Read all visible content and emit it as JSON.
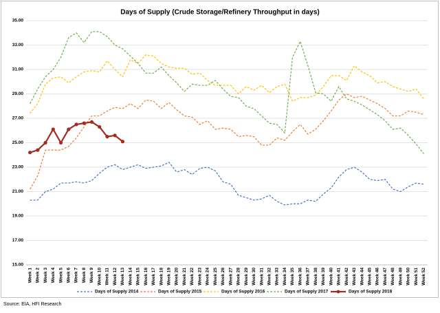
{
  "chart_data": {
    "type": "line",
    "title": "Days of Supply (Crude Storage/Refinery Throughput in days)",
    "source": "Source: EIA, HFI Research",
    "categories": [
      "Week 1",
      "Week 2",
      "Week 3",
      "Week 4",
      "Week 5",
      "Week 6",
      "Week 7",
      "Week 8",
      "Week 9",
      "Week 10",
      "Week 11",
      "Week 12",
      "Week 13",
      "Week 14",
      "Week 15",
      "Week 16",
      "Week 17",
      "Week 18",
      "Week 19",
      "Week 20",
      "Week 21",
      "Week 22",
      "Week 23",
      "Week 24",
      "Week 25",
      "Week 26",
      "Week 27",
      "Week 28",
      "Week 29",
      "Week 30",
      "Week 31",
      "Week 32",
      "Week 33",
      "Week 34",
      "Week 35",
      "Week 36",
      "Week 37",
      "Week 38",
      "Week 39",
      "Week 40",
      "Week 41",
      "Week 42",
      "Week 43",
      "Week 44",
      "Week 45",
      "Week 46",
      "Week 47",
      "Week 48",
      "Week 49",
      "Week 50",
      "Week 51",
      "Week 52"
    ],
    "ylim": [
      15,
      35
    ],
    "yticks": [
      {
        "value": 15,
        "label": "15.00"
      },
      {
        "value": 17,
        "label": "17.00"
      },
      {
        "value": 19,
        "label": "19.00"
      },
      {
        "value": 21,
        "label": "21.00"
      },
      {
        "value": 23,
        "label": "23.00"
      },
      {
        "value": 25,
        "label": "25.00"
      },
      {
        "value": 27,
        "label": "27.00"
      },
      {
        "value": 29,
        "label": "29.00"
      },
      {
        "value": 31,
        "label": "31.00"
      },
      {
        "value": 33,
        "label": "33.00"
      },
      {
        "value": 35,
        "label": "35.00"
      }
    ],
    "grid": true,
    "legend": "bottom",
    "series": [
      {
        "name": "Days of Supply 2014",
        "color": "#4472c4",
        "dashed": true,
        "markers": false,
        "values": [
          20.3,
          20.3,
          21.0,
          21.2,
          21.7,
          21.7,
          21.8,
          21.7,
          21.9,
          22.5,
          23.0,
          23.2,
          22.8,
          23.0,
          23.2,
          22.9,
          23.0,
          23.1,
          23.4,
          22.6,
          22.8,
          22.4,
          22.9,
          23.0,
          22.7,
          21.8,
          21.6,
          20.7,
          20.5,
          20.3,
          20.4,
          20.7,
          20.2,
          19.9,
          20.0,
          20.0,
          20.3,
          20.2,
          20.8,
          21.3,
          22.2,
          22.8,
          23.0,
          22.6,
          22.0,
          21.9,
          22.0,
          21.2,
          21.0,
          21.4,
          21.7,
          21.6
        ]
      },
      {
        "name": "Days of Supply 2015",
        "color": "#ed7d31",
        "dashed": true,
        "markers": false,
        "values": [
          21.2,
          22.3,
          24.4,
          24.4,
          24.4,
          24.7,
          25.4,
          26.3,
          27.2,
          27.2,
          27.6,
          27.9,
          27.8,
          28.2,
          27.8,
          28.5,
          28.4,
          27.8,
          28.3,
          27.7,
          27.2,
          27.1,
          26.5,
          26.8,
          26.1,
          26.2,
          26.1,
          25.5,
          25.6,
          25.5,
          24.8,
          24.8,
          25.4,
          25.2,
          25.9,
          26.5,
          25.7,
          26.1,
          26.8,
          27.6,
          28.5,
          29.0,
          28.7,
          28.8,
          28.5,
          28.2,
          27.8,
          27.2,
          27.2,
          27.6,
          27.5,
          27.3
        ]
      },
      {
        "name": "Days of Supply 2016",
        "color": "#ffc000",
        "dashed": true,
        "markers": false,
        "values": [
          27.4,
          28.2,
          29.8,
          30.3,
          30.4,
          29.9,
          30.4,
          30.8,
          30.9,
          30.8,
          31.7,
          31.0,
          30.4,
          31.8,
          31.5,
          32.2,
          32.1,
          31.5,
          31.2,
          31.1,
          31.1,
          30.6,
          30.7,
          30.1,
          29.7,
          29.7,
          29.7,
          29.0,
          29.6,
          29.3,
          29.7,
          29.1,
          29.6,
          29.8,
          28.4,
          28.7,
          28.7,
          28.9,
          29.6,
          30.5,
          30.5,
          30.1,
          31.3,
          30.8,
          30.5,
          29.9,
          30.0,
          29.6,
          29.4,
          29.2,
          29.4,
          28.6
        ]
      },
      {
        "name": "Days of Supply 2017",
        "color": "#70ad47",
        "dashed": true,
        "markers": false,
        "values": [
          28.2,
          29.4,
          30.4,
          31.0,
          32.0,
          33.6,
          34.0,
          33.2,
          34.1,
          34.1,
          33.7,
          33.0,
          32.7,
          32.1,
          31.5,
          30.7,
          30.7,
          31.2,
          30.5,
          29.9,
          29.2,
          29.8,
          29.7,
          29.7,
          30.1,
          29.4,
          28.8,
          28.7,
          28.0,
          27.8,
          27.2,
          26.6,
          26.5,
          25.8,
          32.0,
          33.3,
          31.3,
          29.1,
          29.0,
          28.4,
          29.6,
          28.6,
          28.4,
          28.1,
          27.7,
          27.3,
          26.8,
          26.1,
          26.2,
          25.6,
          24.9,
          24.1
        ]
      },
      {
        "name": "Days of Supply 2018",
        "color": "#a52a1f",
        "dashed": false,
        "markers": true,
        "values": [
          24.2,
          24.4,
          25.0,
          26.1,
          25.0,
          26.1,
          26.5,
          26.6,
          26.7,
          26.3,
          25.5,
          25.6,
          25.1,
          null,
          null,
          null,
          null,
          null,
          null,
          null,
          null,
          null,
          null,
          null,
          null,
          null,
          null,
          null,
          null,
          null,
          null,
          null,
          null,
          null,
          null,
          null,
          null,
          null,
          null,
          null,
          null,
          null,
          null,
          null,
          null,
          null,
          null,
          null,
          null,
          null,
          null,
          null
        ]
      }
    ]
  }
}
